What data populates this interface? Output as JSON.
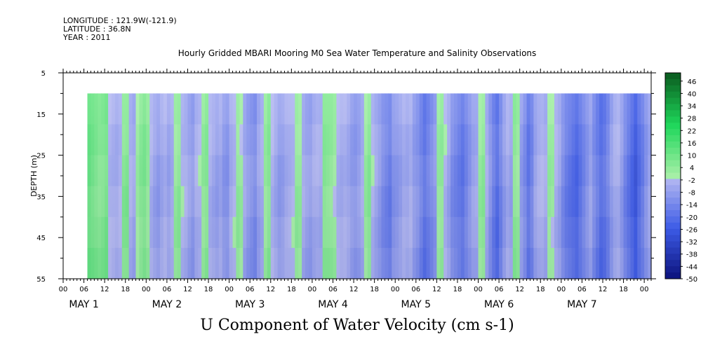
{
  "header": {
    "longitude": "LONGITUDE : 121.9W(-121.9)",
    "latitude": "LATITUDE : 36.8N",
    "year": "YEAR : 2011"
  },
  "chart_data": {
    "type": "heatmap",
    "title": "Hourly Gridded MBARI Mooring M0 Sea Water Temperature and Salinity Observations",
    "footer_title": "U Component of Water Velocity (cm s-1)",
    "ylabel": "DEPTH (m)",
    "ylim": [
      5,
      55
    ],
    "y_inverted": true,
    "y_ticks": [
      5,
      15,
      25,
      35,
      45,
      55
    ],
    "x_hour_tick_labels": [
      "00",
      "06",
      "12",
      "18",
      "00",
      "06",
      "12",
      "18",
      "00",
      "06",
      "12",
      "18",
      "00",
      "06",
      "12",
      "18",
      "00",
      "06",
      "12",
      "18",
      "00",
      "06",
      "12",
      "18",
      "00",
      "06",
      "12",
      "18",
      "00"
    ],
    "x_day_labels": [
      "MAY 1",
      "MAY 2",
      "MAY 3",
      "MAY 4",
      "MAY 5",
      "MAY 6",
      "MAY 7"
    ],
    "x_range_hours": [
      0,
      170
    ],
    "data_depth_range": [
      10,
      55
    ],
    "data_start_hour": 7,
    "colorbar": {
      "labels": [
        "46",
        "40",
        "34",
        "28",
        "22",
        "16",
        "10",
        "4",
        "-2",
        "-8",
        "-14",
        "-20",
        "-26",
        "-32",
        "-38",
        "-44",
        "-50"
      ],
      "min": -50,
      "max": 50,
      "step": 3
    },
    "column_values_cm_s": [
      12,
      10,
      8,
      6,
      7,
      9,
      -2,
      -3,
      -4,
      -2,
      6,
      7,
      -3,
      -5,
      2,
      6,
      8,
      4,
      -3,
      -6,
      -8,
      -5,
      -3,
      -6,
      -4,
      3,
      5,
      -2,
      -3,
      -6,
      -8,
      -3,
      -2,
      4,
      6,
      -3,
      -5,
      -7,
      -5,
      -9,
      -10,
      -4,
      -2,
      4,
      2,
      -5,
      -8,
      -10,
      -12,
      -6,
      -4,
      3,
      6,
      -2,
      -5,
      -8,
      -7,
      -4,
      -3,
      -2,
      4,
      3,
      -4,
      -6,
      -7,
      -4,
      -3,
      -4,
      6,
      5,
      4,
      2,
      -3,
      -4,
      -3,
      -5,
      -8,
      -9,
      -7,
      -4,
      3,
      6,
      -2,
      -5,
      -8,
      -12,
      -14,
      -16,
      -10,
      -9,
      -7,
      -4,
      -5,
      -3,
      -8,
      -10,
      -14,
      -18,
      -15,
      -12,
      -9,
      3,
      4,
      -2,
      -6,
      -12,
      -14,
      -16,
      -18,
      -14,
      -10,
      -6,
      -5,
      3,
      5,
      -4,
      -10,
      -16,
      -20,
      -14,
      -8,
      -4,
      -6,
      5,
      3,
      -8,
      -12,
      -18,
      -14,
      -6,
      -3,
      -2,
      -4,
      3,
      2,
      -3,
      -6,
      -12,
      -16,
      -18,
      -20,
      -22,
      -18,
      -14,
      -10,
      -6,
      -12,
      -16,
      -20,
      -18,
      -14,
      -8,
      -4,
      -3,
      -8,
      -14,
      -18,
      -22,
      -26,
      -20,
      -16,
      -10,
      -6,
      3
    ],
    "colors": {
      "positive_light": "#a8f0a8",
      "positive_strong": "#1ed65a",
      "positive_dark": "#0a5a1e",
      "negative_light": "#b8bcf2",
      "negative_strong": "#3c5ae6",
      "negative_dark": "#0a0f78"
    }
  }
}
